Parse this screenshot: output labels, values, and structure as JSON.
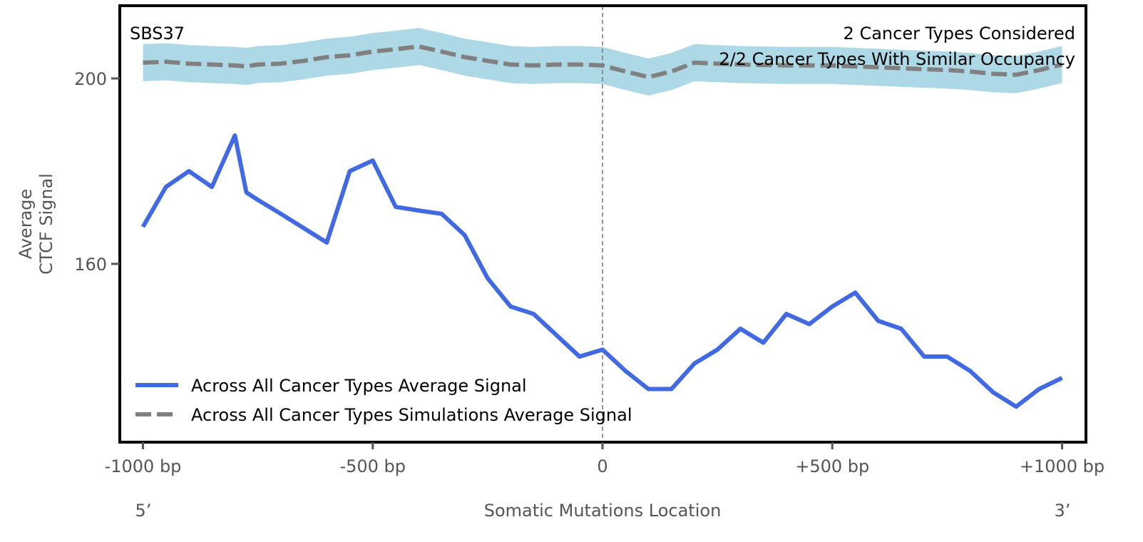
{
  "chart_data": {
    "type": "line",
    "title": "SBS37",
    "annotations": [
      "2 Cancer Types Considered",
      "2/2 Cancer Types With Similar Occupancy"
    ],
    "xlabel": "Somatic Mutations Location",
    "ylabel_lines": [
      "Average",
      "CTCF Signal"
    ],
    "x_end_labels": {
      "left": "5’",
      "right": "3’"
    },
    "xlim": [
      -1050,
      1050
    ],
    "ylim": [
      121.5,
      215.7
    ],
    "x_ticks": [
      -1000,
      -500,
      0,
      500,
      1000
    ],
    "x_tick_labels": [
      "-1000 bp",
      "-500 bp",
      "0",
      "+500 bp",
      "+1000 bp"
    ],
    "y_ticks": [
      160,
      200
    ],
    "y_tick_labels": [
      "160",
      "200"
    ],
    "grid": false,
    "vline_x": 0,
    "legend_position": "lower-left",
    "x": [
      -1000,
      -950,
      -900,
      -850,
      -800,
      -775,
      -750,
      -700,
      -650,
      -600,
      -550,
      -500,
      -450,
      -400,
      -350,
      -300,
      -250,
      -200,
      -150,
      -100,
      -50,
      0,
      50,
      100,
      150,
      200,
      250,
      300,
      350,
      400,
      450,
      500,
      550,
      600,
      650,
      700,
      750,
      800,
      850,
      900,
      950,
      1000
    ],
    "series": [
      {
        "name": "Across All Cancer Types Average Signal",
        "color": "#4169e1",
        "style": "solid",
        "values": [
          168,
          176.6,
          180,
          176.6,
          187.7,
          175.4,
          173.8,
          170.8,
          167.7,
          164.6,
          180,
          182.3,
          172.3,
          171.5,
          170.8,
          166.2,
          156.9,
          150.8,
          149.2,
          144.6,
          140,
          141.5,
          136.9,
          133,
          133,
          138.5,
          141.5,
          146,
          143,
          149.2,
          147,
          150.8,
          153.8,
          147.7,
          146,
          140,
          140,
          136.9,
          132.3,
          129.2,
          133,
          135.4
        ]
      },
      {
        "name": "Across All Cancer Types Simulations Average Signal",
        "color": "#808080",
        "style": "dashed",
        "values": [
          203.4,
          203.6,
          203.2,
          203,
          202.8,
          202.6,
          203,
          203.2,
          203.8,
          204.6,
          205,
          205.8,
          206.3,
          206.9,
          205.8,
          204.6,
          203.8,
          203,
          202.8,
          203,
          203,
          202.8,
          201.5,
          200.3,
          201.5,
          203.4,
          203.2,
          203,
          202.9,
          202.8,
          202.8,
          202.8,
          202.6,
          202.4,
          202.2,
          202,
          201.8,
          201.5,
          201,
          200.8,
          201.8,
          203
        ]
      }
    ],
    "band": {
      "color": "#add8e6",
      "half_width": 4
    }
  }
}
